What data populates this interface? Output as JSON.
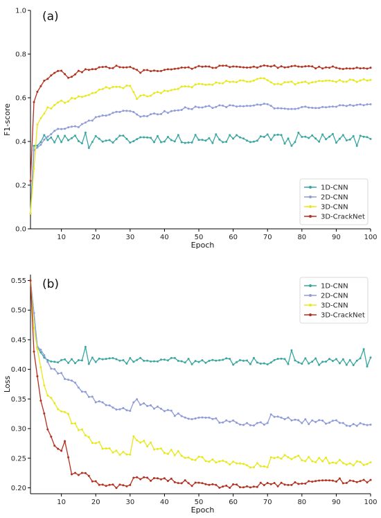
{
  "colors": {
    "1D-CNN": "#3aa6a0",
    "2D-CNN": "#8f9ad8",
    "3D-CNN": "#e8e81c",
    "3D-CrackNet": "#b2301e"
  },
  "chart_data": [
    {
      "panel": "(a)",
      "type": "line",
      "xlabel": "Epoch",
      "ylabel": "F1-score",
      "xlim": [
        1,
        100
      ],
      "ylim": [
        0.0,
        1.0
      ],
      "xticks": [
        10,
        20,
        30,
        40,
        50,
        60,
        70,
        80,
        90,
        100
      ],
      "yticks": [
        "0.0",
        "0.2",
        "0.4",
        "0.6",
        "0.8",
        "1.0"
      ],
      "legend_position": "bottom-right",
      "series": [
        {
          "name": "1D-CNN",
          "shape": "rise-then-noisy",
          "start": 0.07,
          "segments": [
            [
              2,
              0.38
            ],
            [
              5,
              0.41
            ],
            [
              100,
              0.415
            ]
          ],
          "noise": 0.02,
          "events": [
            [
              17,
              0.44
            ],
            [
              18,
              0.37
            ],
            [
              49,
              0.43
            ],
            [
              75,
              0.39
            ],
            [
              77,
              0.38
            ],
            [
              79,
              0.44
            ],
            [
              96,
              0.38
            ]
          ]
        },
        {
          "name": "2D-CNN",
          "start": 0.07,
          "segments": [
            [
              2,
              0.36
            ],
            [
              8,
              0.45
            ],
            [
              15,
              0.47
            ],
            [
              22,
              0.52
            ],
            [
              30,
              0.54
            ],
            [
              33,
              0.51
            ],
            [
              45,
              0.55
            ],
            [
              60,
              0.565
            ],
            [
              70,
              0.57
            ],
            [
              72,
              0.55
            ],
            [
              100,
              0.57
            ]
          ],
          "noise": 0.006
        },
        {
          "name": "3D-CNN",
          "start": 0.07,
          "segments": [
            [
              3,
              0.48
            ],
            [
              6,
              0.55
            ],
            [
              10,
              0.58
            ],
            [
              15,
              0.6
            ],
            [
              20,
              0.63
            ],
            [
              25,
              0.65
            ],
            [
              30,
              0.65
            ],
            [
              32,
              0.6
            ],
            [
              40,
              0.63
            ],
            [
              50,
              0.66
            ],
            [
              60,
              0.675
            ],
            [
              70,
              0.685
            ],
            [
              72,
              0.665
            ],
            [
              100,
              0.68
            ]
          ],
          "noise": 0.007
        },
        {
          "name": "3D-CrackNet",
          "start": 0.22,
          "segments": [
            [
              2,
              0.58
            ],
            [
              3,
              0.63
            ],
            [
              5,
              0.68
            ],
            [
              8,
              0.71
            ],
            [
              10,
              0.725
            ],
            [
              12,
              0.69
            ],
            [
              15,
              0.72
            ],
            [
              20,
              0.735
            ],
            [
              30,
              0.745
            ],
            [
              33,
              0.72
            ],
            [
              50,
              0.74
            ],
            [
              60,
              0.745
            ],
            [
              100,
              0.735
            ]
          ],
          "noise": 0.006
        }
      ]
    },
    {
      "panel": "(b)",
      "type": "line",
      "xlabel": "Epoch",
      "ylabel": "Loss",
      "xlim": [
        1,
        100
      ],
      "ylim": [
        0.19,
        0.56
      ],
      "xticks": [
        10,
        20,
        30,
        40,
        50,
        60,
        70,
        80,
        90,
        100
      ],
      "yticks": [
        "0.20",
        "0.25",
        "0.30",
        "0.35",
        "0.40",
        "0.45",
        "0.50",
        "0.55"
      ],
      "legend_position": "top-right",
      "series": [
        {
          "name": "1D-CNN",
          "start": 0.55,
          "segments": [
            [
              3,
              0.44
            ],
            [
              6,
              0.415
            ],
            [
              100,
              0.413
            ]
          ],
          "noise": 0.006,
          "events": [
            [
              17,
              0.438
            ],
            [
              77,
              0.432
            ],
            [
              98,
              0.434
            ],
            [
              99,
              0.405
            ],
            [
              100,
              0.42
            ]
          ]
        },
        {
          "name": "2D-CNN",
          "start": 0.55,
          "segments": [
            [
              3,
              0.44
            ],
            [
              6,
              0.41
            ],
            [
              10,
              0.39
            ],
            [
              15,
              0.37
            ],
            [
              20,
              0.345
            ],
            [
              25,
              0.335
            ],
            [
              30,
              0.332
            ],
            [
              31,
              0.348
            ],
            [
              35,
              0.34
            ],
            [
              40,
              0.33
            ],
            [
              45,
              0.322
            ],
            [
              50,
              0.318
            ],
            [
              60,
              0.31
            ],
            [
              70,
              0.308
            ],
            [
              71,
              0.322
            ],
            [
              80,
              0.312
            ],
            [
              90,
              0.31
            ],
            [
              100,
              0.305
            ]
          ],
          "noise": 0.004
        },
        {
          "name": "3D-CNN",
          "start": 0.55,
          "segments": [
            [
              2,
              0.47
            ],
            [
              5,
              0.37
            ],
            [
              8,
              0.34
            ],
            [
              12,
              0.32
            ],
            [
              15,
              0.3
            ],
            [
              20,
              0.275
            ],
            [
              25,
              0.262
            ],
            [
              30,
              0.255
            ],
            [
              31,
              0.285
            ],
            [
              35,
              0.275
            ],
            [
              40,
              0.262
            ],
            [
              50,
              0.25
            ],
            [
              60,
              0.24
            ],
            [
              70,
              0.237
            ],
            [
              71,
              0.255
            ],
            [
              80,
              0.25
            ],
            [
              90,
              0.245
            ],
            [
              100,
              0.24
            ]
          ],
          "noise": 0.005
        },
        {
          "name": "3D-CrackNet",
          "start": 0.55,
          "segments": [
            [
              2,
              0.43
            ],
            [
              4,
              0.35
            ],
            [
              6,
              0.3
            ],
            [
              8,
              0.275
            ],
            [
              10,
              0.26
            ],
            [
              11,
              0.28
            ],
            [
              13,
              0.225
            ],
            [
              16,
              0.225
            ],
            [
              20,
              0.21
            ],
            [
              25,
              0.202
            ],
            [
              30,
              0.201
            ],
            [
              31,
              0.218
            ],
            [
              35,
              0.215
            ],
            [
              45,
              0.21
            ],
            [
              50,
              0.205
            ],
            [
              60,
              0.203
            ],
            [
              70,
              0.205
            ],
            [
              80,
              0.21
            ],
            [
              90,
              0.212
            ],
            [
              100,
              0.21
            ]
          ],
          "noise": 0.004
        }
      ]
    }
  ]
}
